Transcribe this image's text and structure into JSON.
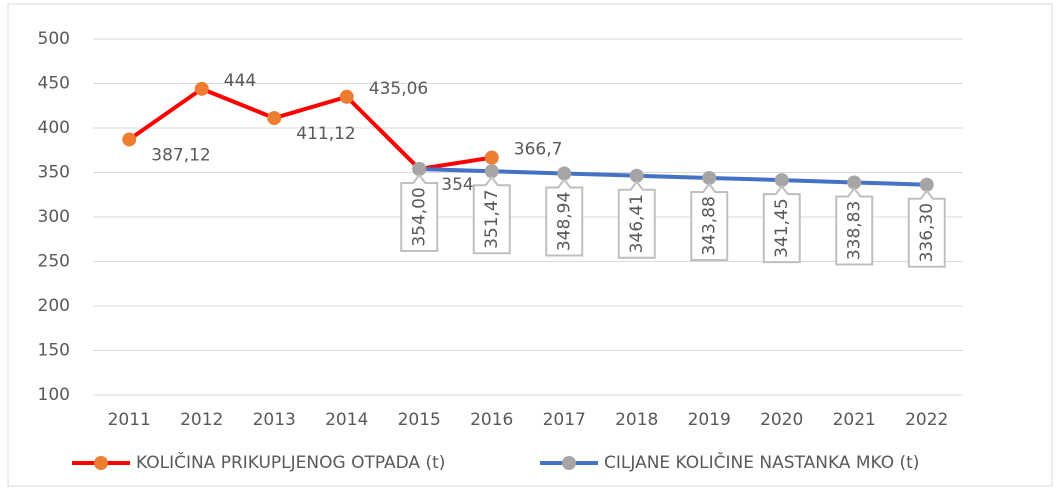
{
  "chart_data": {
    "type": "line",
    "categories": [
      "2011",
      "2012",
      "2013",
      "2014",
      "2015",
      "2016",
      "2017",
      "2018",
      "2019",
      "2020",
      "2021",
      "2022"
    ],
    "series": [
      {
        "name": "KOLIČINA PRIKUPLJENOG OTPADA (t)",
        "color": "#ff0000",
        "marker_color": "#ed7d31",
        "values": [
          387.12,
          444,
          411.12,
          435.06,
          354,
          366.7,
          null,
          null,
          null,
          null,
          null,
          null
        ],
        "value_labels": [
          "387,12",
          "444",
          "411,12",
          "435,06",
          "354",
          "366,7",
          null,
          null,
          null,
          null,
          null,
          null
        ]
      },
      {
        "name": "CILJANE KOLIČINE NASTANKA MKO (t)",
        "color": "#4472c4",
        "marker_color": "#a5a5a5",
        "values": [
          null,
          null,
          null,
          null,
          354.0,
          351.47,
          348.94,
          346.41,
          343.88,
          341.45,
          338.83,
          336.3
        ],
        "value_labels": [
          null,
          null,
          null,
          null,
          "354,00",
          "351,47",
          "348,94",
          "346,41",
          "343,88",
          "341,45",
          "338,83",
          "336,30"
        ]
      }
    ],
    "ylim": [
      100,
      500
    ],
    "yticks": [
      100,
      150,
      200,
      250,
      300,
      350,
      400,
      450,
      500
    ],
    "grid": true,
    "legend": "bottom"
  }
}
